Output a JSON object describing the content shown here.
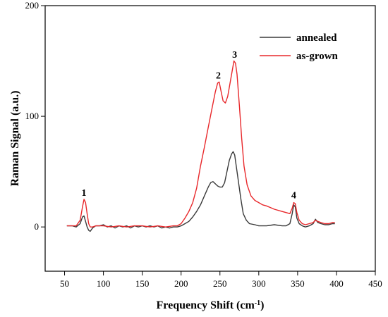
{
  "chart_data": {
    "type": "line",
    "xlabel": "Frequency Shift (cm",
    "xlabel_sup": "-1",
    "xlabel_end": ")",
    "ylabel": "Raman Signal (a.u.)",
    "xlim": [
      25,
      450
    ],
    "ylim": [
      -40,
      200
    ],
    "x_ticks": [
      50,
      100,
      150,
      200,
      250,
      300,
      350,
      400,
      450
    ],
    "y_ticks": [
      0,
      100,
      200
    ],
    "grid": false,
    "legend_position": "top-right",
    "series": [
      {
        "name": "annealed",
        "color": "#3a3a3a",
        "points": [
          [
            53,
            1
          ],
          [
            60,
            1
          ],
          [
            65,
            0
          ],
          [
            70,
            3
          ],
          [
            73,
            9
          ],
          [
            75,
            10
          ],
          [
            77,
            5
          ],
          [
            79,
            0
          ],
          [
            81,
            -3
          ],
          [
            83,
            -4
          ],
          [
            86,
            -1
          ],
          [
            90,
            1
          ],
          [
            95,
            1
          ],
          [
            100,
            2
          ],
          [
            105,
            0
          ],
          [
            110,
            1
          ],
          [
            115,
            -1
          ],
          [
            120,
            1
          ],
          [
            125,
            0
          ],
          [
            130,
            1
          ],
          [
            135,
            -1
          ],
          [
            140,
            1
          ],
          [
            145,
            0
          ],
          [
            150,
            1
          ],
          [
            155,
            0
          ],
          [
            160,
            1
          ],
          [
            165,
            0
          ],
          [
            170,
            1
          ],
          [
            175,
            -1
          ],
          [
            180,
            0
          ],
          [
            185,
            -1
          ],
          [
            190,
            0
          ],
          [
            195,
            0
          ],
          [
            200,
            1
          ],
          [
            205,
            3
          ],
          [
            210,
            5
          ],
          [
            215,
            9
          ],
          [
            220,
            14
          ],
          [
            225,
            20
          ],
          [
            230,
            28
          ],
          [
            235,
            36
          ],
          [
            238,
            40
          ],
          [
            241,
            41
          ],
          [
            244,
            39
          ],
          [
            247,
            37
          ],
          [
            250,
            36
          ],
          [
            253,
            36
          ],
          [
            256,
            40
          ],
          [
            259,
            50
          ],
          [
            262,
            60
          ],
          [
            265,
            66
          ],
          [
            267,
            68
          ],
          [
            269,
            65
          ],
          [
            271,
            55
          ],
          [
            274,
            40
          ],
          [
            277,
            25
          ],
          [
            280,
            12
          ],
          [
            284,
            6
          ],
          [
            288,
            3
          ],
          [
            295,
            2
          ],
          [
            300,
            1
          ],
          [
            305,
            1
          ],
          [
            310,
            1
          ],
          [
            320,
            2
          ],
          [
            330,
            1
          ],
          [
            335,
            1
          ],
          [
            340,
            3
          ],
          [
            343,
            12
          ],
          [
            345,
            20
          ],
          [
            347,
            18
          ],
          [
            349,
            8
          ],
          [
            352,
            3
          ],
          [
            356,
            1
          ],
          [
            360,
            0
          ],
          [
            365,
            1
          ],
          [
            370,
            3
          ],
          [
            373,
            7
          ],
          [
            376,
            4
          ],
          [
            380,
            3
          ],
          [
            385,
            2
          ],
          [
            390,
            2
          ],
          [
            395,
            3
          ],
          [
            398,
            3
          ]
        ]
      },
      {
        "name": "as-grown",
        "color": "#e8282b",
        "points": [
          [
            53,
            1
          ],
          [
            60,
            1
          ],
          [
            65,
            1
          ],
          [
            70,
            6
          ],
          [
            73,
            18
          ],
          [
            75,
            25
          ],
          [
            77,
            22
          ],
          [
            79,
            12
          ],
          [
            81,
            3
          ],
          [
            83,
            0
          ],
          [
            86,
            0
          ],
          [
            90,
            1
          ],
          [
            100,
            1
          ],
          [
            110,
            0
          ],
          [
            120,
            1
          ],
          [
            130,
            0
          ],
          [
            140,
            1
          ],
          [
            150,
            1
          ],
          [
            160,
            0
          ],
          [
            170,
            1
          ],
          [
            180,
            0
          ],
          [
            190,
            1
          ],
          [
            195,
            1
          ],
          [
            200,
            3
          ],
          [
            205,
            8
          ],
          [
            210,
            14
          ],
          [
            215,
            22
          ],
          [
            220,
            35
          ],
          [
            225,
            55
          ],
          [
            230,
            72
          ],
          [
            235,
            90
          ],
          [
            240,
            108
          ],
          [
            244,
            122
          ],
          [
            247,
            130
          ],
          [
            249,
            131
          ],
          [
            251,
            124
          ],
          [
            254,
            114
          ],
          [
            257,
            112
          ],
          [
            260,
            118
          ],
          [
            263,
            130
          ],
          [
            266,
            142
          ],
          [
            268,
            150
          ],
          [
            270,
            148
          ],
          [
            272,
            138
          ],
          [
            275,
            110
          ],
          [
            278,
            80
          ],
          [
            281,
            55
          ],
          [
            285,
            38
          ],
          [
            290,
            28
          ],
          [
            295,
            24
          ],
          [
            300,
            22
          ],
          [
            305,
            20
          ],
          [
            310,
            19
          ],
          [
            320,
            16
          ],
          [
            330,
            14
          ],
          [
            335,
            13
          ],
          [
            340,
            12
          ],
          [
            343,
            17
          ],
          [
            345,
            22
          ],
          [
            347,
            21
          ],
          [
            349,
            13
          ],
          [
            352,
            6
          ],
          [
            356,
            3
          ],
          [
            360,
            2
          ],
          [
            365,
            3
          ],
          [
            370,
            4
          ],
          [
            373,
            6
          ],
          [
            376,
            5
          ],
          [
            380,
            4
          ],
          [
            385,
            3
          ],
          [
            390,
            3
          ],
          [
            395,
            4
          ],
          [
            398,
            4
          ]
        ]
      }
    ],
    "annotations": [
      {
        "text": "1",
        "x": 75,
        "y": 28
      },
      {
        "text": "2",
        "x": 248,
        "y": 134
      },
      {
        "text": "3",
        "x": 269,
        "y": 153
      },
      {
        "text": "4",
        "x": 345,
        "y": 26
      }
    ]
  }
}
